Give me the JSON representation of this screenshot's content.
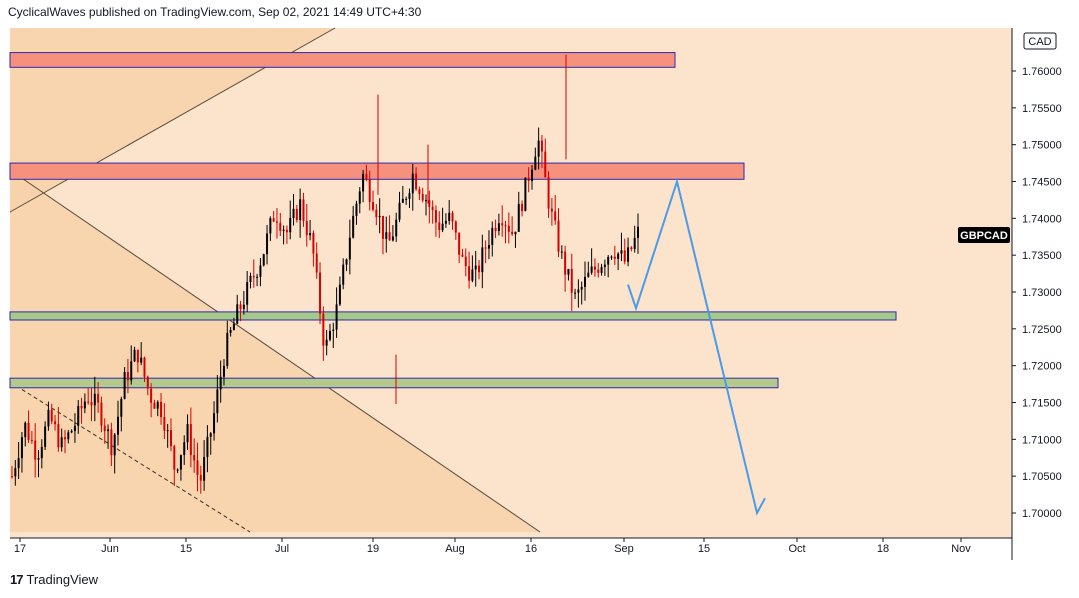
{
  "header": {
    "publisher_line": "CyclicalWaves published on TradingView.com, Sep 02, 2021 14:49 UTC+4:30"
  },
  "footer": {
    "brand": "TradingView",
    "logo_glyph": "17"
  },
  "chart_data": {
    "type": "candlestick",
    "symbol": "GBPCAD",
    "currency": "CAD",
    "x_tick_labels": [
      "17",
      "Jun",
      "15",
      "Jul",
      "19",
      "Aug",
      "16",
      "Sep",
      "15",
      "Oct",
      "18",
      "Nov"
    ],
    "y_tick_labels": [
      "1.76000",
      "1.75500",
      "1.75000",
      "1.74500",
      "1.74000",
      "1.73500",
      "1.73000",
      "1.72500",
      "1.72000",
      "1.71500",
      "1.71000",
      "1.70500",
      "1.70000"
    ],
    "y_ticks": [
      1.76,
      1.755,
      1.75,
      1.745,
      1.74,
      1.735,
      1.73,
      1.725,
      1.72,
      1.715,
      1.71,
      1.705,
      1.7
    ],
    "ylim": [
      1.6975,
      1.7665
    ],
    "last_price": 1.7385,
    "zones": [
      {
        "kind": "resistance",
        "low": 1.7605,
        "high": 1.7625,
        "color": "#f5917c"
      },
      {
        "kind": "resistance",
        "low": 1.7453,
        "high": 1.7475,
        "color": "#f5917c"
      },
      {
        "kind": "support",
        "low": 1.7262,
        "high": 1.7273,
        "color": "#a6c98a"
      },
      {
        "kind": "support",
        "low": 1.717,
        "high": 1.7183,
        "color": "#b5c98a"
      }
    ],
    "projection_path_prices": [
      1.731,
      1.7278,
      1.745,
      1.7,
      1.702
    ],
    "price_path_anchors": [
      1.705,
      1.712,
      1.708,
      1.713,
      1.709,
      1.712,
      1.716,
      1.714,
      1.709,
      1.718,
      1.722,
      1.716,
      1.714,
      1.706,
      1.711,
      1.704,
      1.712,
      1.722,
      1.727,
      1.731,
      1.735,
      1.741,
      1.738,
      1.742,
      1.736,
      1.722,
      1.728,
      1.738,
      1.746,
      1.742,
      1.736,
      1.741,
      1.746,
      1.743,
      1.739,
      1.74,
      1.734,
      1.732,
      1.737,
      1.741,
      1.738,
      1.744,
      1.751,
      1.741,
      1.734,
      1.729,
      1.732,
      1.734,
      1.736,
      1.734,
      1.738
    ],
    "colors": {
      "up": "#000000",
      "down": "#d90000",
      "projection": "#4a9be8",
      "background": "#fbe3cc",
      "shaded": "#f7d1ac"
    }
  }
}
